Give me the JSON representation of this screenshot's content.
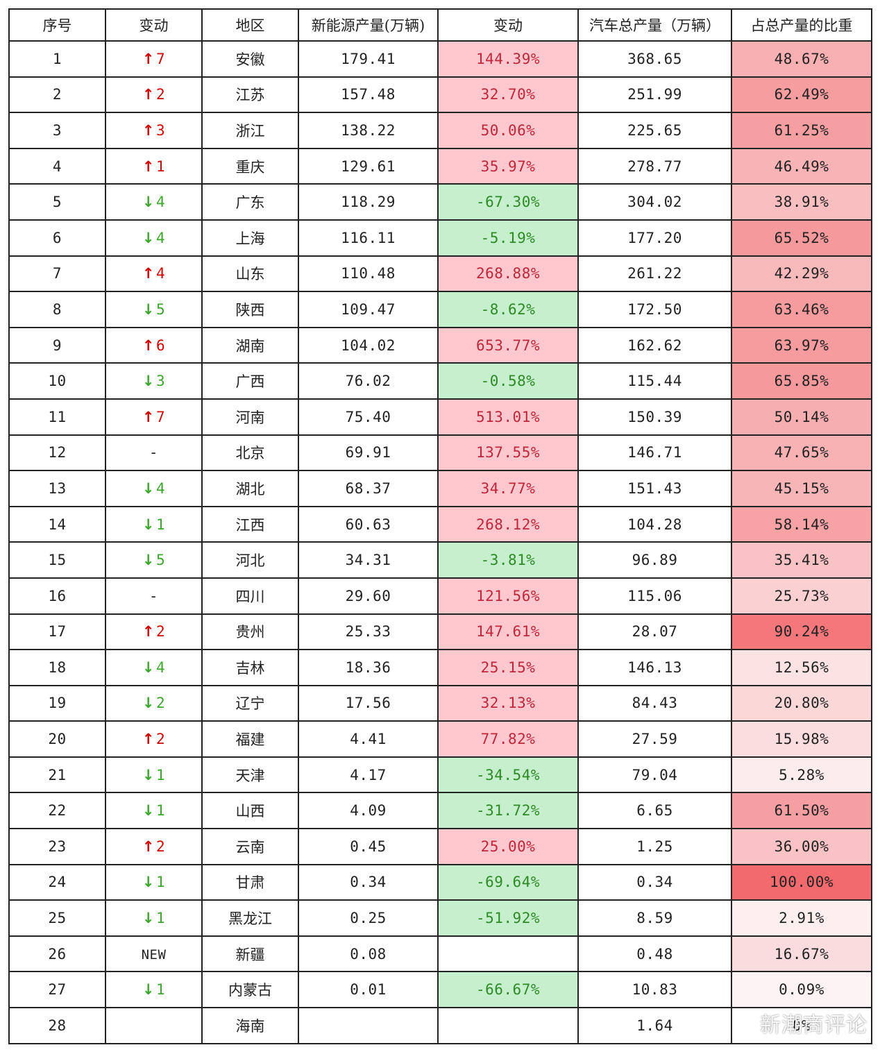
{
  "headers": [
    "序号",
    "变动",
    "地区",
    "新能源产量(万辆)",
    "变动",
    "汽车总产量（万辆）",
    "占总产量的比重"
  ],
  "colors": {
    "up": "#d40000",
    "down": "#3aa82a",
    "pct_pos_bg": "#ffc7ce",
    "pct_neg_bg": "#c6efce",
    "share_scale_low": "#fdf3f4",
    "share_scale_high": "#f26a6e"
  },
  "rows": [
    {
      "rank": "1",
      "dir": "up",
      "move": "7",
      "region": "安徽",
      "ne": "179.41",
      "pct": "144.39%",
      "pct_sign": "pos",
      "total": "368.65",
      "share": "48.67%",
      "share_v": 48.67
    },
    {
      "rank": "2",
      "dir": "up",
      "move": "2",
      "region": "江苏",
      "ne": "157.48",
      "pct": "32.70%",
      "pct_sign": "pos",
      "total": "251.99",
      "share": "62.49%",
      "share_v": 62.49
    },
    {
      "rank": "3",
      "dir": "up",
      "move": "3",
      "region": "浙江",
      "ne": "138.22",
      "pct": "50.06%",
      "pct_sign": "pos",
      "total": "225.65",
      "share": "61.25%",
      "share_v": 61.25
    },
    {
      "rank": "4",
      "dir": "up",
      "move": "1",
      "region": "重庆",
      "ne": "129.61",
      "pct": "35.97%",
      "pct_sign": "pos",
      "total": "278.77",
      "share": "46.49%",
      "share_v": 46.49
    },
    {
      "rank": "5",
      "dir": "down",
      "move": "4",
      "region": "广东",
      "ne": "118.29",
      "pct": "-67.30%",
      "pct_sign": "neg",
      "total": "304.02",
      "share": "38.91%",
      "share_v": 38.91
    },
    {
      "rank": "6",
      "dir": "down",
      "move": "4",
      "region": "上海",
      "ne": "116.11",
      "pct": "-5.19%",
      "pct_sign": "neg",
      "total": "177.20",
      "share": "65.52%",
      "share_v": 65.52
    },
    {
      "rank": "7",
      "dir": "up",
      "move": "4",
      "region": "山东",
      "ne": "110.48",
      "pct": "268.88%",
      "pct_sign": "pos",
      "total": "261.22",
      "share": "42.29%",
      "share_v": 42.29
    },
    {
      "rank": "8",
      "dir": "down",
      "move": "5",
      "region": "陕西",
      "ne": "109.47",
      "pct": "-8.62%",
      "pct_sign": "neg",
      "total": "172.50",
      "share": "63.46%",
      "share_v": 63.46
    },
    {
      "rank": "9",
      "dir": "up",
      "move": "6",
      "region": "湖南",
      "ne": "104.02",
      "pct": "653.77%",
      "pct_sign": "pos",
      "total": "162.62",
      "share": "63.97%",
      "share_v": 63.97
    },
    {
      "rank": "10",
      "dir": "down",
      "move": "3",
      "region": "广西",
      "ne": "76.02",
      "pct": "-0.58%",
      "pct_sign": "neg",
      "total": "115.44",
      "share": "65.85%",
      "share_v": 65.85
    },
    {
      "rank": "11",
      "dir": "up",
      "move": "7",
      "region": "河南",
      "ne": "75.40",
      "pct": "513.01%",
      "pct_sign": "pos",
      "total": "150.39",
      "share": "50.14%",
      "share_v": 50.14
    },
    {
      "rank": "12",
      "dir": "none",
      "move": "-",
      "region": "北京",
      "ne": "69.91",
      "pct": "137.55%",
      "pct_sign": "pos",
      "total": "146.71",
      "share": "47.65%",
      "share_v": 47.65
    },
    {
      "rank": "13",
      "dir": "down",
      "move": "4",
      "region": "湖北",
      "ne": "68.37",
      "pct": "34.77%",
      "pct_sign": "pos",
      "total": "151.43",
      "share": "45.15%",
      "share_v": 45.15
    },
    {
      "rank": "14",
      "dir": "down",
      "move": "1",
      "region": "江西",
      "ne": "60.63",
      "pct": "268.12%",
      "pct_sign": "pos",
      "total": "104.28",
      "share": "58.14%",
      "share_v": 58.14
    },
    {
      "rank": "15",
      "dir": "down",
      "move": "5",
      "region": "河北",
      "ne": "34.31",
      "pct": "-3.81%",
      "pct_sign": "neg",
      "total": "96.89",
      "share": "35.41%",
      "share_v": 35.41
    },
    {
      "rank": "16",
      "dir": "none",
      "move": "-",
      "region": "四川",
      "ne": "29.60",
      "pct": "121.56%",
      "pct_sign": "pos",
      "total": "115.06",
      "share": "25.73%",
      "share_v": 25.73
    },
    {
      "rank": "17",
      "dir": "up",
      "move": "2",
      "region": "贵州",
      "ne": "25.33",
      "pct": "147.61%",
      "pct_sign": "pos",
      "total": "28.07",
      "share": "90.24%",
      "share_v": 90.24
    },
    {
      "rank": "18",
      "dir": "down",
      "move": "4",
      "region": "吉林",
      "ne": "18.36",
      "pct": "25.15%",
      "pct_sign": "pos",
      "total": "146.13",
      "share": "12.56%",
      "share_v": 12.56
    },
    {
      "rank": "19",
      "dir": "down",
      "move": "2",
      "region": "辽宁",
      "ne": "17.56",
      "pct": "32.13%",
      "pct_sign": "pos",
      "total": "84.43",
      "share": "20.80%",
      "share_v": 20.8
    },
    {
      "rank": "20",
      "dir": "up",
      "move": "2",
      "region": "福建",
      "ne": "4.41",
      "pct": "77.82%",
      "pct_sign": "pos",
      "total": "27.59",
      "share": "15.98%",
      "share_v": 15.98
    },
    {
      "rank": "21",
      "dir": "down",
      "move": "1",
      "region": "天津",
      "ne": "4.17",
      "pct": "-34.54%",
      "pct_sign": "neg",
      "total": "79.04",
      "share": "5.28%",
      "share_v": 5.28
    },
    {
      "rank": "22",
      "dir": "down",
      "move": "1",
      "region": "山西",
      "ne": "4.09",
      "pct": "-31.72%",
      "pct_sign": "neg",
      "total": "6.65",
      "share": "61.50%",
      "share_v": 61.5
    },
    {
      "rank": "23",
      "dir": "up",
      "move": "2",
      "region": "云南",
      "ne": "0.45",
      "pct": "25.00%",
      "pct_sign": "pos",
      "total": "1.25",
      "share": "36.00%",
      "share_v": 36.0
    },
    {
      "rank": "24",
      "dir": "down",
      "move": "1",
      "region": "甘肃",
      "ne": "0.34",
      "pct": "-69.64%",
      "pct_sign": "neg",
      "total": "0.34",
      "share": "100.00%",
      "share_v": 100.0
    },
    {
      "rank": "25",
      "dir": "down",
      "move": "1",
      "region": "黑龙江",
      "ne": "0.25",
      "pct": "-51.92%",
      "pct_sign": "neg",
      "total": "8.59",
      "share": "2.91%",
      "share_v": 2.91
    },
    {
      "rank": "26",
      "dir": "new",
      "move": "NEW",
      "region": "新疆",
      "ne": "0.08",
      "pct": "",
      "pct_sign": "none",
      "total": "0.48",
      "share": "16.67%",
      "share_v": 16.67
    },
    {
      "rank": "27",
      "dir": "down",
      "move": "1",
      "region": "内蒙古",
      "ne": "0.01",
      "pct": "-66.67%",
      "pct_sign": "neg",
      "total": "10.83",
      "share": "0.09%",
      "share_v": 0.09
    },
    {
      "rank": "28",
      "dir": "blank",
      "move": "",
      "region": "海南",
      "ne": "",
      "pct": "",
      "pct_sign": "none",
      "total": "1.64",
      "share": "0%",
      "share_v": 0
    }
  ],
  "watermark": "新潮商评论"
}
